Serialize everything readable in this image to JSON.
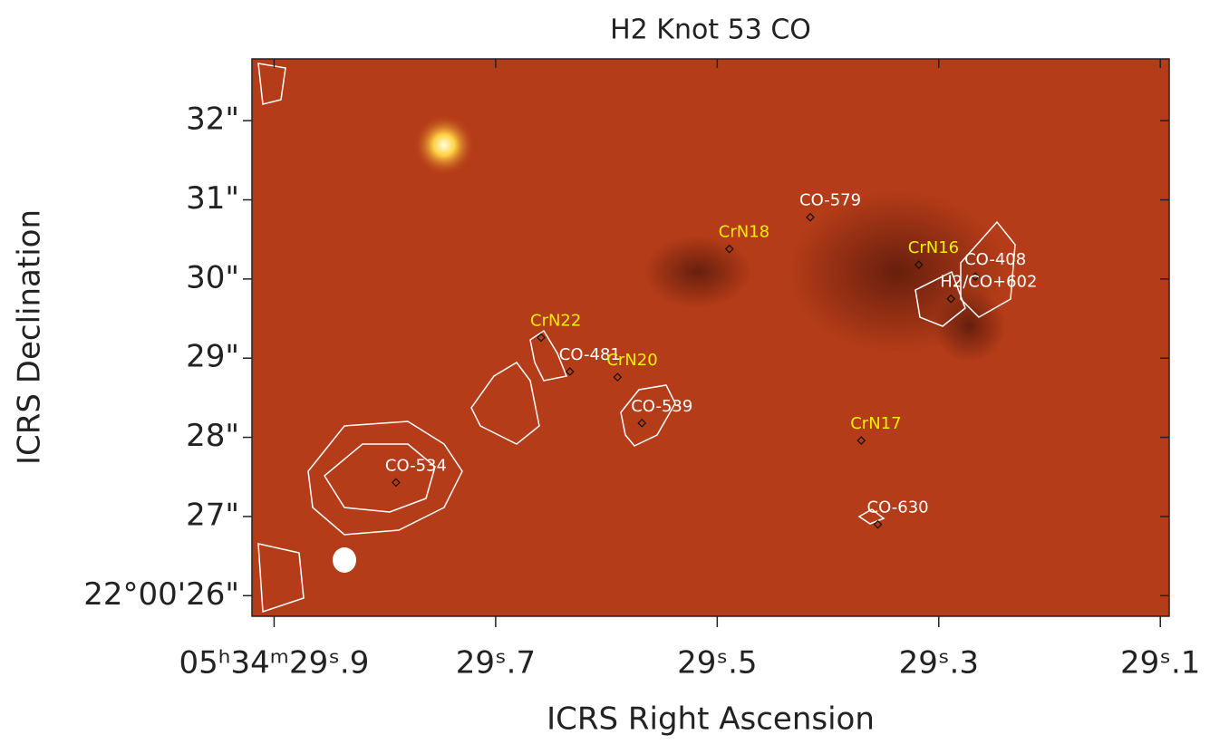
{
  "chart_data": {
    "type": "image",
    "title": "H2 Knot 53 CO",
    "x_label": "ICRS Right Ascension",
    "y_label": "ICRS Declination",
    "xlim": [
      29.92,
      29.092
    ],
    "ylim": [
      25.74,
      32.78
    ],
    "xticks": [
      {
        "value": 29.9,
        "label": "05ʰ34ᵐ29ˢ.9"
      },
      {
        "value": 29.7,
        "label": "29ˢ.7"
      },
      {
        "value": 29.5,
        "label": "29ˢ.5"
      },
      {
        "value": 29.3,
        "label": "29ˢ.3"
      },
      {
        "value": 29.1,
        "label": "29ˢ.1"
      }
    ],
    "yticks": [
      {
        "value": 26,
        "label": "22°00'26\""
      },
      {
        "value": 27,
        "label": "27\""
      },
      {
        "value": 28,
        "label": "28\""
      },
      {
        "value": 29,
        "label": "29\""
      },
      {
        "value": 30,
        "label": "30\""
      },
      {
        "value": 31,
        "label": "31\""
      },
      {
        "value": 32,
        "label": "32\""
      }
    ],
    "series": [
      {
        "name": "CO",
        "color": "#ffffff",
        "labels": [
          "CO-534",
          "CO-481",
          "CO-539",
          "CO-579",
          "CO-630",
          "CO-408",
          "H2/CO+602"
        ],
        "x": [
          29.79,
          29.633,
          29.568,
          29.416,
          29.355,
          29.267,
          29.289
        ],
        "values": [
          27.43,
          28.83,
          28.18,
          30.78,
          26.9,
          30.03,
          29.75
        ]
      },
      {
        "name": "CrN",
        "color": "#f0f000",
        "labels": [
          "CrN22",
          "CrN20",
          "CrN18",
          "CrN17",
          "CrN16"
        ],
        "x": [
          29.659,
          29.59,
          29.489,
          29.37,
          29.318
        ],
        "values": [
          29.26,
          28.76,
          30.38,
          27.96,
          30.18
        ]
      }
    ]
  }
}
